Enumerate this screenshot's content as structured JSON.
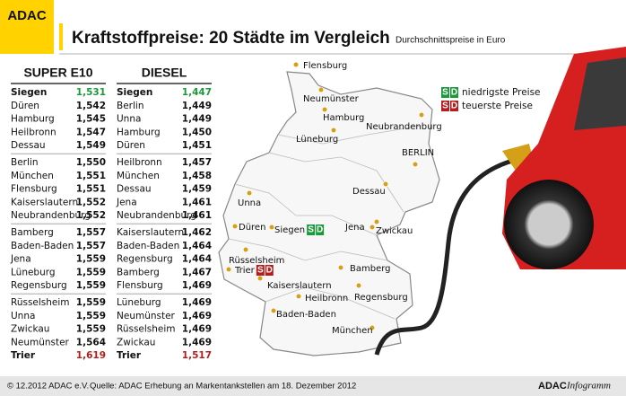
{
  "header": {
    "logo": "ADAC",
    "title": "Kraftstoffpreise: 20 Städte im Vergleich",
    "subtitle": "Durchschnittspreise in Euro"
  },
  "tables": [
    {
      "title": "SUPER E10",
      "rows": [
        [
          "Siegen",
          "1,531"
        ],
        [
          "Düren",
          "1,542"
        ],
        [
          "Hamburg",
          "1,545"
        ],
        [
          "Heilbronn",
          "1,547"
        ],
        [
          "Dessau",
          "1,549"
        ],
        [
          "Berlin",
          "1,550"
        ],
        [
          "München",
          "1,551"
        ],
        [
          "Flensburg",
          "1,551"
        ],
        [
          "Kaiserslautern",
          "1,552"
        ],
        [
          "Neubrandenburg",
          "1,552"
        ],
        [
          "Bamberg",
          "1,557"
        ],
        [
          "Baden-Baden",
          "1,557"
        ],
        [
          "Jena",
          "1,559"
        ],
        [
          "Lüneburg",
          "1,559"
        ],
        [
          "Regensburg",
          "1,559"
        ],
        [
          "Rüsselsheim",
          "1,559"
        ],
        [
          "Unna",
          "1,559"
        ],
        [
          "Zwickau",
          "1,559"
        ],
        [
          "Neumünster",
          "1,564"
        ],
        [
          "Trier",
          "1,619"
        ]
      ]
    },
    {
      "title": "DIESEL",
      "rows": [
        [
          "Siegen",
          "1,447"
        ],
        [
          "Berlin",
          "1,449"
        ],
        [
          "Unna",
          "1,449"
        ],
        [
          "Hamburg",
          "1,450"
        ],
        [
          "Düren",
          "1,451"
        ],
        [
          "Heilbronn",
          "1,457"
        ],
        [
          "München",
          "1,458"
        ],
        [
          "Dessau",
          "1,459"
        ],
        [
          "Jena",
          "1,461"
        ],
        [
          "Neubrandenburg",
          "1,461"
        ],
        [
          "Kaiserslautern",
          "1,462"
        ],
        [
          "Baden-Baden",
          "1,464"
        ],
        [
          "Regensburg",
          "1,464"
        ],
        [
          "Bamberg",
          "1,467"
        ],
        [
          "Flensburg",
          "1,469"
        ],
        [
          "Lüneburg",
          "1,469"
        ],
        [
          "Neumünster",
          "1,469"
        ],
        [
          "Rüsselsheim",
          "1,469"
        ],
        [
          "Zwickau",
          "1,469"
        ],
        [
          "Trier",
          "1,517"
        ]
      ]
    }
  ],
  "legend": [
    {
      "s": "S",
      "d": "D",
      "label": "niedrigste Preise"
    },
    {
      "s": "S",
      "d": "D",
      "label": "teuerste Preise"
    }
  ],
  "map": {
    "cities": [
      "Flensburg",
      "Neumünster",
      "Hamburg",
      "Neubrandenburg",
      "Lüneburg",
      "BERLIN",
      "Dessau",
      "Unna",
      "Düren",
      "Siegen",
      "Jena",
      "Zwickau",
      "Rüsselsheim",
      "Trier",
      "Kaiserslautern",
      "Bamberg",
      "Heilbronn",
      "Regensburg",
      "Baden-Baden",
      "München"
    ]
  },
  "footer": {
    "copyright": "© 12.2012 ADAC e.V.",
    "source": "Quelle: ADAC Erhebung an Markentankstellen am 18. Dezember 2012",
    "brand": "ADAC",
    "brand_suffix": "Infogramm"
  }
}
